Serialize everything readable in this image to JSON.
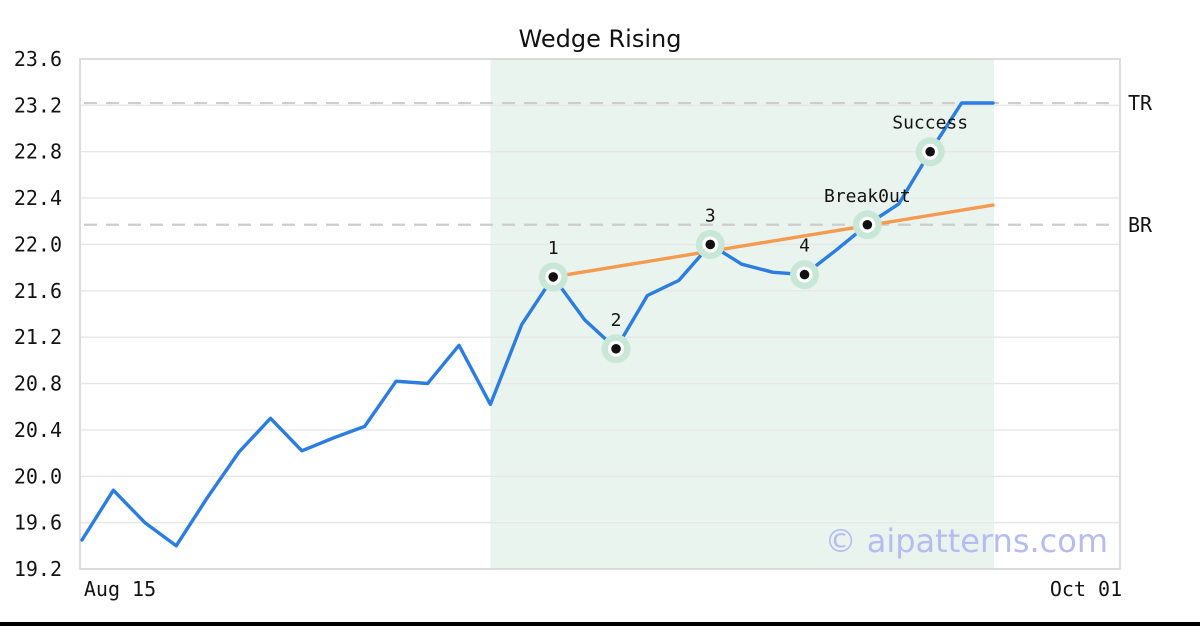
{
  "title": "Wedge Rising",
  "watermark": "© aipatterns.com",
  "colors": {
    "price_line": "#2b7de2",
    "trendline": "#f59a4e",
    "marker_halo": "#c9e7d6",
    "marker_dot": "#111111",
    "wedge_region": "#e9f4ef",
    "dashed_level": "#cdcdcd",
    "gridline": "#e7e7e7",
    "plot_border": "#d4d4d4",
    "text": "#141414",
    "watermark_color": "#b6bcf0",
    "bottom_bar": "#000000"
  },
  "chart_data": {
    "type": "line",
    "title": "Wedge Rising",
    "xlabel": "",
    "ylabel": "",
    "ylim": [
      19.2,
      23.6
    ],
    "grid": true,
    "legend": "none",
    "x_tick_labels": [
      "Aug 15",
      "Oct 01"
    ],
    "y_ticks": [
      23.6,
      23.2,
      22.8,
      22.4,
      22.0,
      21.6,
      21.2,
      20.8,
      20.4,
      20.0,
      19.6,
      19.2
    ],
    "series": [
      {
        "name": "price",
        "values": [
          19.45,
          19.88,
          19.6,
          19.4,
          19.82,
          20.21,
          20.5,
          20.22,
          20.33,
          20.43,
          20.82,
          20.8,
          21.13,
          20.62,
          21.31,
          21.72,
          21.35,
          21.1,
          21.56,
          21.69,
          22.0,
          21.83,
          21.76,
          21.74,
          21.95,
          22.17,
          22.35,
          22.8,
          23.22,
          23.22
        ]
      }
    ],
    "wedge_region": {
      "start_index": 13,
      "end_index": 29
    },
    "trendline": {
      "start_index": 15,
      "start_value": 21.72,
      "end_index": 29,
      "end_value": 22.34
    },
    "levels": [
      {
        "label": "TR",
        "value": 23.22
      },
      {
        "label": "BR",
        "value": 22.17
      }
    ],
    "annotations": [
      {
        "label": "1",
        "index": 15,
        "value": 21.72
      },
      {
        "label": "2",
        "index": 17,
        "value": 21.1
      },
      {
        "label": "3",
        "index": 20,
        "value": 22.0
      },
      {
        "label": "4",
        "index": 23,
        "value": 21.74
      },
      {
        "label": "Break0ut",
        "index": 25,
        "value": 22.17
      },
      {
        "label": "Success",
        "index": 27,
        "value": 22.8
      }
    ]
  }
}
